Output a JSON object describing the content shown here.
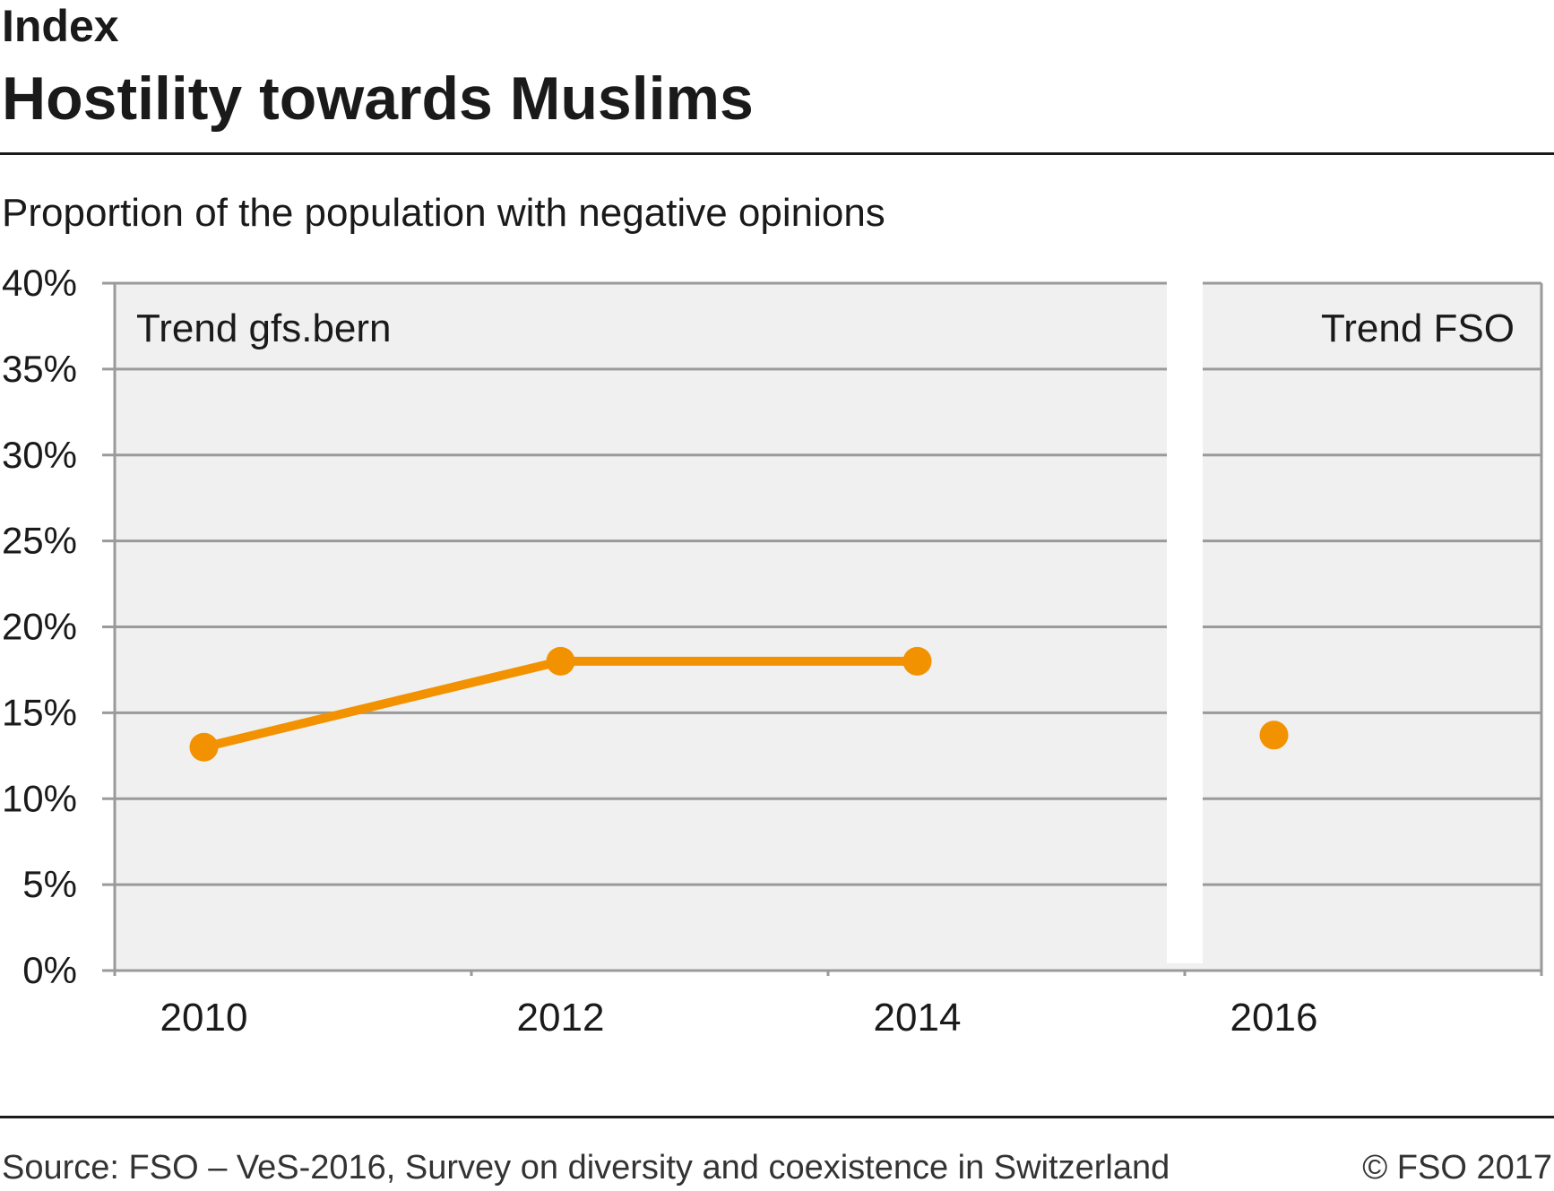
{
  "header": {
    "supertitle": "Index",
    "title": "Hostility towards Muslims",
    "subtitle": "Proportion of the population with negative opinions"
  },
  "footer": {
    "source": "Source: FSO – VeS-2016, Survey on diversity and coexistence in Switzerland",
    "copyright": "© FSO 2017"
  },
  "colors": {
    "series": "#f39200",
    "plot_background": "#f0f0f0",
    "grid": "#9a9a9a"
  },
  "chart_data": {
    "type": "line",
    "x": [
      2010,
      2012,
      2014,
      2016
    ],
    "ylim": [
      0,
      40
    ],
    "yticks": [
      "0%",
      "5%",
      "10%",
      "15%",
      "20%",
      "25%",
      "30%",
      "35%",
      "40%"
    ],
    "xticks": [
      "2010",
      "2012",
      "2014",
      "2016"
    ],
    "grid": true,
    "annotations": [
      "Trend gfs.bern",
      "Trend FSO"
    ],
    "series": [
      {
        "name": "Trend gfs.bern",
        "x": [
          2010,
          2012,
          2014
        ],
        "values": [
          13,
          18,
          18
        ]
      },
      {
        "name": "Trend FSO",
        "x": [
          2016
        ],
        "values": [
          13.7
        ]
      }
    ]
  }
}
